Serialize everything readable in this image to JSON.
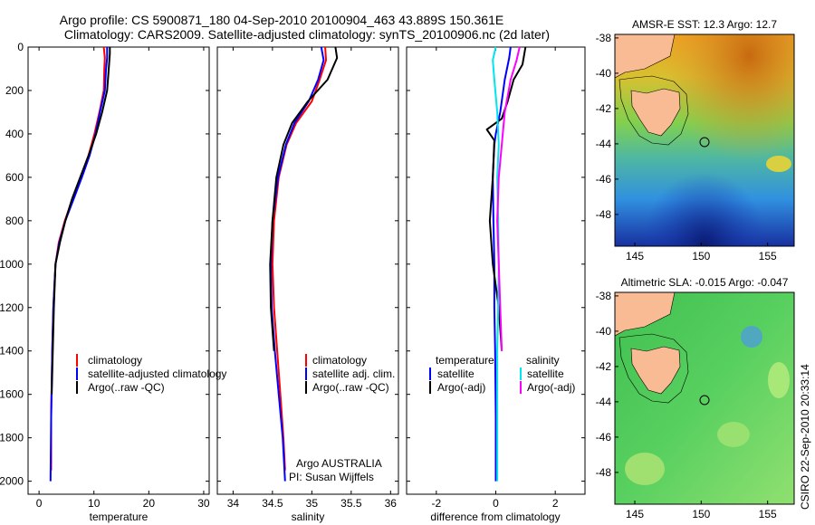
{
  "header": {
    "title_line1": "Argo profile: CS 5900871_180 04-Sep-2010 20100904_463 43.889S 150.361E",
    "title_line2": "Climatology: CARS2009. Satellite-adjusted climatology: synTS_20100906.nc (2d later)"
  },
  "colors": {
    "climatology": "#ff0000",
    "satellite": "#0000ff",
    "argo": "#000000",
    "salinity_satellite": "#00e5ee",
    "salinity_argo": "#ff00ff",
    "land": "#f8bb94"
  },
  "chart_data": [
    {
      "name": "temperature",
      "type": "line",
      "xlabel": "temperature",
      "xlim": [
        -2,
        31
      ],
      "ylim": [
        2060,
        0
      ],
      "xticks": [
        0,
        10,
        20,
        30
      ],
      "yticks": [
        0,
        200,
        400,
        600,
        800,
        1000,
        1200,
        1400,
        1600,
        1800,
        2000
      ],
      "legend": [
        "climatology",
        "satellite-adjusted climatology",
        "Argo(..raw -QC)"
      ],
      "series": [
        {
          "name": "climatology",
          "color": "#ff0000",
          "x": [
            11.8,
            12.0,
            11.9,
            11.8,
            11.0,
            10.1,
            9.0,
            7.6,
            6.1,
            4.7,
            3.6,
            3.0,
            2.6,
            2.4,
            2.2,
            2.2
          ],
          "y": [
            0,
            50,
            100,
            200,
            300,
            400,
            500,
            600,
            700,
            800,
            900,
            1000,
            1200,
            1400,
            1700,
            1950
          ]
        },
        {
          "name": "satellite-adjusted climatology",
          "color": "#0000ff",
          "x": [
            12.4,
            12.4,
            12.2,
            12.0,
            11.1,
            10.3,
            9.2,
            7.8,
            6.3,
            4.8,
            3.7,
            3.0,
            2.6,
            2.4,
            2.2,
            2.1
          ],
          "y": [
            0,
            50,
            100,
            200,
            300,
            400,
            500,
            600,
            700,
            800,
            900,
            1000,
            1200,
            1400,
            1700,
            2000
          ]
        },
        {
          "name": "Argo(..raw -QC)",
          "color": "#000000",
          "x": [
            12.9,
            12.9,
            12.7,
            12.4,
            11.5,
            10.4,
            9.0,
            7.5,
            6.0,
            4.8,
            3.8,
            3.0,
            2.7,
            2.5,
            2.3
          ],
          "y": [
            0,
            30,
            100,
            200,
            300,
            400,
            500,
            600,
            700,
            800,
            900,
            1000,
            1200,
            1400,
            1600
          ]
        }
      ]
    },
    {
      "name": "salinity",
      "type": "line",
      "xlabel": "salinity",
      "xlim": [
        33.8,
        36.1
      ],
      "ylim": [
        2060,
        0
      ],
      "xticks": [
        34,
        34.5,
        35,
        35.5,
        36
      ],
      "legend": [
        "climatology",
        "satellite adj. clim.",
        "Argo(..raw -QC)"
      ],
      "annotation": [
        "Argo AUSTRALIA",
        "PI: Susan Wijffels"
      ],
      "series": [
        {
          "name": "climatology",
          "color": "#ff0000",
          "x": [
            35.17,
            35.18,
            35.1,
            35.0,
            34.8,
            34.68,
            34.58,
            34.52,
            34.5,
            34.52,
            34.56,
            34.6,
            34.64,
            34.66
          ],
          "y": [
            0,
            60,
            150,
            250,
            350,
            450,
            600,
            800,
            1000,
            1200,
            1400,
            1600,
            1800,
            1950
          ]
        },
        {
          "name": "satellite adj. clim.",
          "color": "#0000ff",
          "x": [
            35.12,
            35.15,
            35.08,
            34.96,
            34.78,
            34.67,
            34.57,
            34.5,
            34.48,
            34.49,
            34.53,
            34.58,
            34.63,
            34.66
          ],
          "y": [
            0,
            60,
            150,
            250,
            350,
            450,
            600,
            800,
            1000,
            1200,
            1400,
            1600,
            1800,
            2000
          ]
        },
        {
          "name": "Argo(..raw -QC)",
          "color": "#000000",
          "x": [
            35.3,
            35.32,
            35.2,
            34.95,
            34.75,
            34.64,
            34.55,
            34.5,
            34.47,
            34.48,
            34.52
          ],
          "y": [
            0,
            50,
            150,
            250,
            350,
            450,
            600,
            800,
            1000,
            1200,
            1400
          ]
        }
      ]
    },
    {
      "name": "difference",
      "type": "line",
      "xlabel": "difference from climatology",
      "xlim": [
        -3,
        3
      ],
      "ylim": [
        2060,
        0
      ],
      "xticks": [
        -2,
        0,
        2
      ],
      "legend": {
        "temperature_header": "temperature",
        "salinity_header": "salinity",
        "entries": [
          "satellite",
          "Argo(-adj)",
          "satellite",
          "Argo(-adj)"
        ]
      },
      "series": [
        {
          "name": "temperature satellite",
          "color": "#0000ff",
          "x": [
            0.5,
            0.45,
            0.3,
            0.15,
            0.0,
            -0.05,
            -0.1,
            -0.08,
            -0.05,
            -0.05,
            -0.02,
            0.0,
            0.0
          ],
          "y": [
            0,
            50,
            150,
            300,
            400,
            450,
            600,
            800,
            1000,
            1200,
            1400,
            1700,
            2000
          ]
        },
        {
          "name": "temperature Argo(-adj)",
          "color": "#000000",
          "x": [
            1.0,
            0.9,
            0.6,
            0.4,
            0.2,
            -0.3,
            -0.05,
            -0.1,
            -0.2,
            -0.1,
            0.1,
            0.2
          ],
          "y": [
            0,
            80,
            150,
            250,
            330,
            380,
            430,
            600,
            800,
            1000,
            1200,
            1400
          ]
        },
        {
          "name": "salinity satellite",
          "color": "#00e5ee",
          "x": [
            0.0,
            -0.1,
            -0.05,
            0.05,
            0.1,
            0.05,
            0.08,
            0.1,
            0.08,
            0.05,
            0.05,
            0.05
          ],
          "y": [
            0,
            60,
            150,
            300,
            450,
            600,
            800,
            1000,
            1200,
            1400,
            1700,
            2000
          ]
        },
        {
          "name": "salinity Argo(-adj)",
          "color": "#ff00ff",
          "x": [
            0.8,
            0.7,
            0.5,
            0.3,
            0.2,
            0.1,
            0.05,
            0.1,
            0.15,
            0.2
          ],
          "y": [
            0,
            60,
            150,
            300,
            450,
            600,
            800,
            1000,
            1200,
            1400
          ]
        }
      ]
    },
    {
      "name": "sst_map",
      "type": "heatmap",
      "title": "AMSR-E SST: 12.3 Argo: 12.7",
      "xticks": [
        145,
        150,
        155
      ],
      "yticks": [
        -38,
        -40,
        -42,
        -44,
        -46,
        -48
      ],
      "xlim": [
        143.5,
        157
      ],
      "ylim": [
        -49.8,
        -37.8
      ],
      "float_position": [
        150.361,
        -43.889
      ]
    },
    {
      "name": "sla_map",
      "type": "heatmap",
      "title": "Altimetric SLA: -0.015 Argo: -0.047",
      "xticks": [
        145,
        150,
        155
      ],
      "yticks": [
        -38,
        -40,
        -42,
        -44,
        -46,
        -48
      ],
      "xlim": [
        143.5,
        157
      ],
      "ylim": [
        -49.8,
        -37.8
      ],
      "float_position": [
        150.361,
        -43.889
      ]
    }
  ],
  "footer": {
    "credit": "CSIRO 22-Sep-2010 20:33:14"
  }
}
